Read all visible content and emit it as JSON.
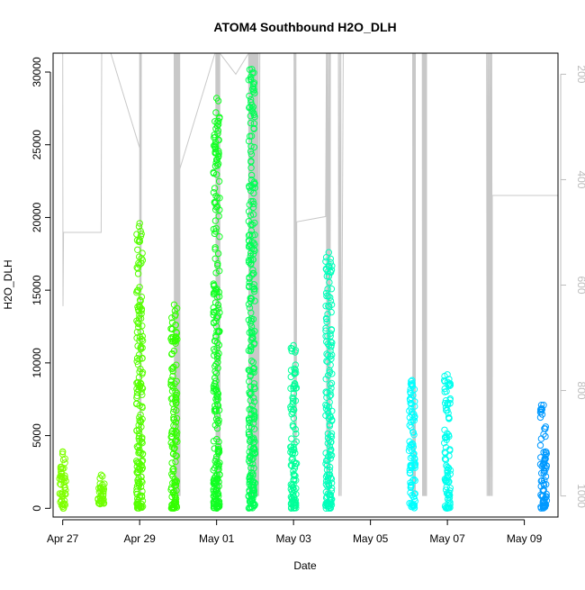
{
  "chart_data": {
    "type": "scatter",
    "title": "ATOM4 Southbound H2O_DLH",
    "xlabel": "Date",
    "ylabel": "H2O_DLH",
    "x_ticks": [
      "Apr 27",
      "Apr 29",
      "May 01",
      "May 03",
      "May 05",
      "May 07",
      "May 09"
    ],
    "y_ticks": [
      "0",
      "5000",
      "10000",
      "15000",
      "20000",
      "25000",
      "30000"
    ],
    "y2_ticks": [
      "200",
      "400",
      "600",
      "800",
      "1000"
    ],
    "xlim": [
      "Apr 26 18:00",
      "May 09 21:00"
    ],
    "ylim": [
      -600,
      31300
    ],
    "y2lim": [
      1040,
      160
    ],
    "y2_reversed": true,
    "grid": false,
    "legend": "none",
    "series": [
      {
        "x": "Apr 27 00:00",
        "ymin": 0,
        "ymax": 3900,
        "color": "#7fff00"
      },
      {
        "x": "Apr 28 00:00",
        "ymin": 300,
        "ymax": 2300,
        "color": "#6fff00"
      },
      {
        "x": "Apr 29 00:00",
        "ymin": 0,
        "ymax": 19600,
        "color": "#55ff00"
      },
      {
        "x": "Apr 29 21:30",
        "ymin": 0,
        "ymax": 14000,
        "color": "#33ff00"
      },
      {
        "x": "May 01 00:00",
        "ymin": 0,
        "ymax": 28200,
        "color": "#11ff22"
      },
      {
        "x": "May 01 22:00",
        "ymin": 0,
        "ymax": 30200,
        "color": "#00ff55"
      },
      {
        "x": "May 03 00:00",
        "ymin": 0,
        "ymax": 11200,
        "color": "#00ff99"
      },
      {
        "x": "May 03 22:00",
        "ymin": 0,
        "ymax": 17600,
        "color": "#00ffbb"
      },
      {
        "x": "May 06 02:00",
        "ymin": 0,
        "ymax": 8800,
        "color": "#00ffff"
      },
      {
        "x": "May 07 00:00",
        "ymin": 0,
        "ymax": 9200,
        "color": "#00ffee"
      },
      {
        "x": "May 09 12:00",
        "ymin": 0,
        "ymax": 7100,
        "color": "#0099ff"
      }
    ],
    "pressure_trace_color": "#c8c8c8"
  }
}
